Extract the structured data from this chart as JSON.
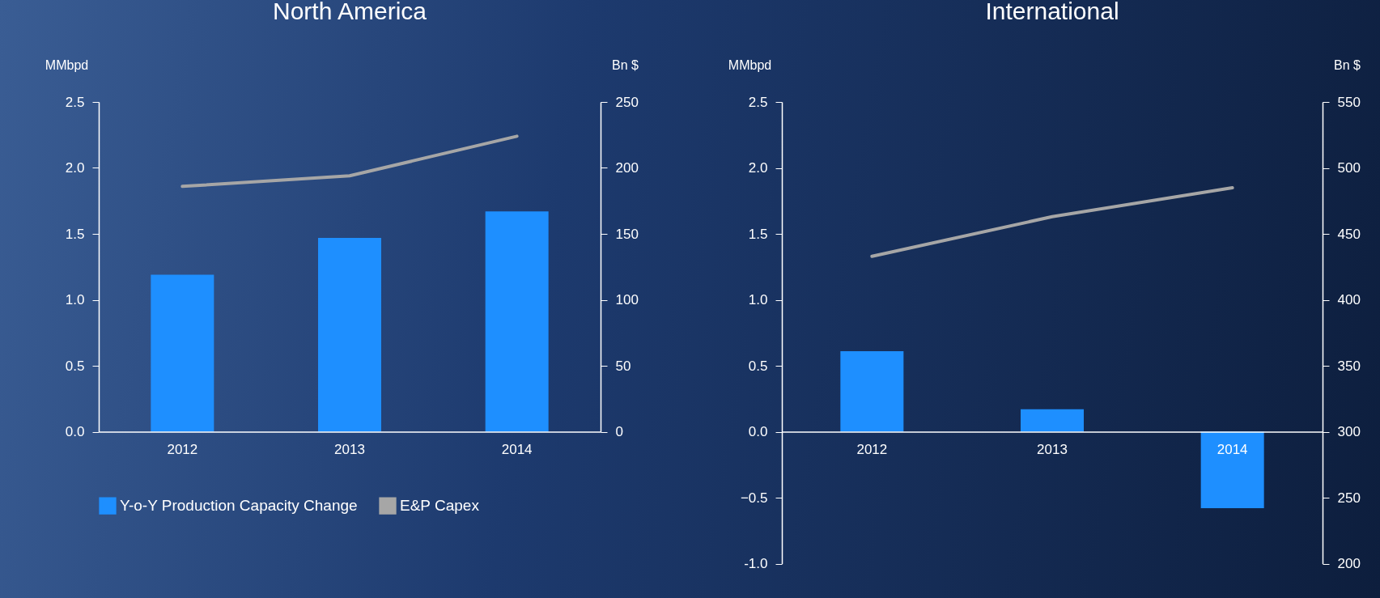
{
  "chart_data": [
    {
      "type": "bar",
      "title": "North America",
      "ylabel": "MMbpd",
      "y2label": "Bn $",
      "categories": [
        "2012",
        "2013",
        "2014"
      ],
      "series": [
        {
          "name": "Y-o-Y Production Capacity Change",
          "color": "#1e8fff",
          "values": [
            1.19,
            1.47,
            1.67
          ]
        },
        {
          "name": "E&P Capex",
          "type": "line",
          "axis": "y2",
          "color": "#a6a6a6",
          "values": [
            186,
            194,
            224
          ]
        }
      ],
      "ylim": [
        0,
        2.5
      ],
      "yticks": [
        {
          "value": 0,
          "label": "0.0"
        },
        0.5,
        {
          "value": 1,
          "label": "1.0"
        },
        1.5,
        {
          "value": 2,
          "label": "2.0"
        },
        2.5
      ],
      "y2lim": [
        0,
        250
      ],
      "y2ticks": [
        0,
        50,
        100,
        150,
        200,
        250
      ],
      "legend": "bottom",
      "grid": false
    },
    {
      "type": "bar",
      "title": "International",
      "ylabel": "MMbpd",
      "y2label": "Bn $",
      "categories": [
        "2012",
        "2013",
        "2014"
      ],
      "series": [
        {
          "color": "#1e8fff",
          "values": [
            0.61,
            0.17,
            -0.58
          ]
        },
        {
          "type": "line",
          "axis": "y2",
          "color": "#a6a6a6",
          "values": [
            433,
            463,
            485
          ]
        }
      ],
      "ylim": [
        -1,
        2.5
      ],
      "yticks": [
        {
          "value": -1,
          "label": "-1.0"
        },
        -0.5,
        {
          "value": 0,
          "label": "0.0"
        },
        0.5,
        {
          "value": 1,
          "label": "1.0"
        },
        1.5,
        {
          "value": 2,
          "label": "2.0"
        },
        2.5
      ],
      "y2lim": [
        200,
        550
      ],
      "y2ticks": [
        200,
        250,
        300,
        350,
        400,
        450,
        500,
        550
      ],
      "legend": false,
      "grid": false
    }
  ]
}
